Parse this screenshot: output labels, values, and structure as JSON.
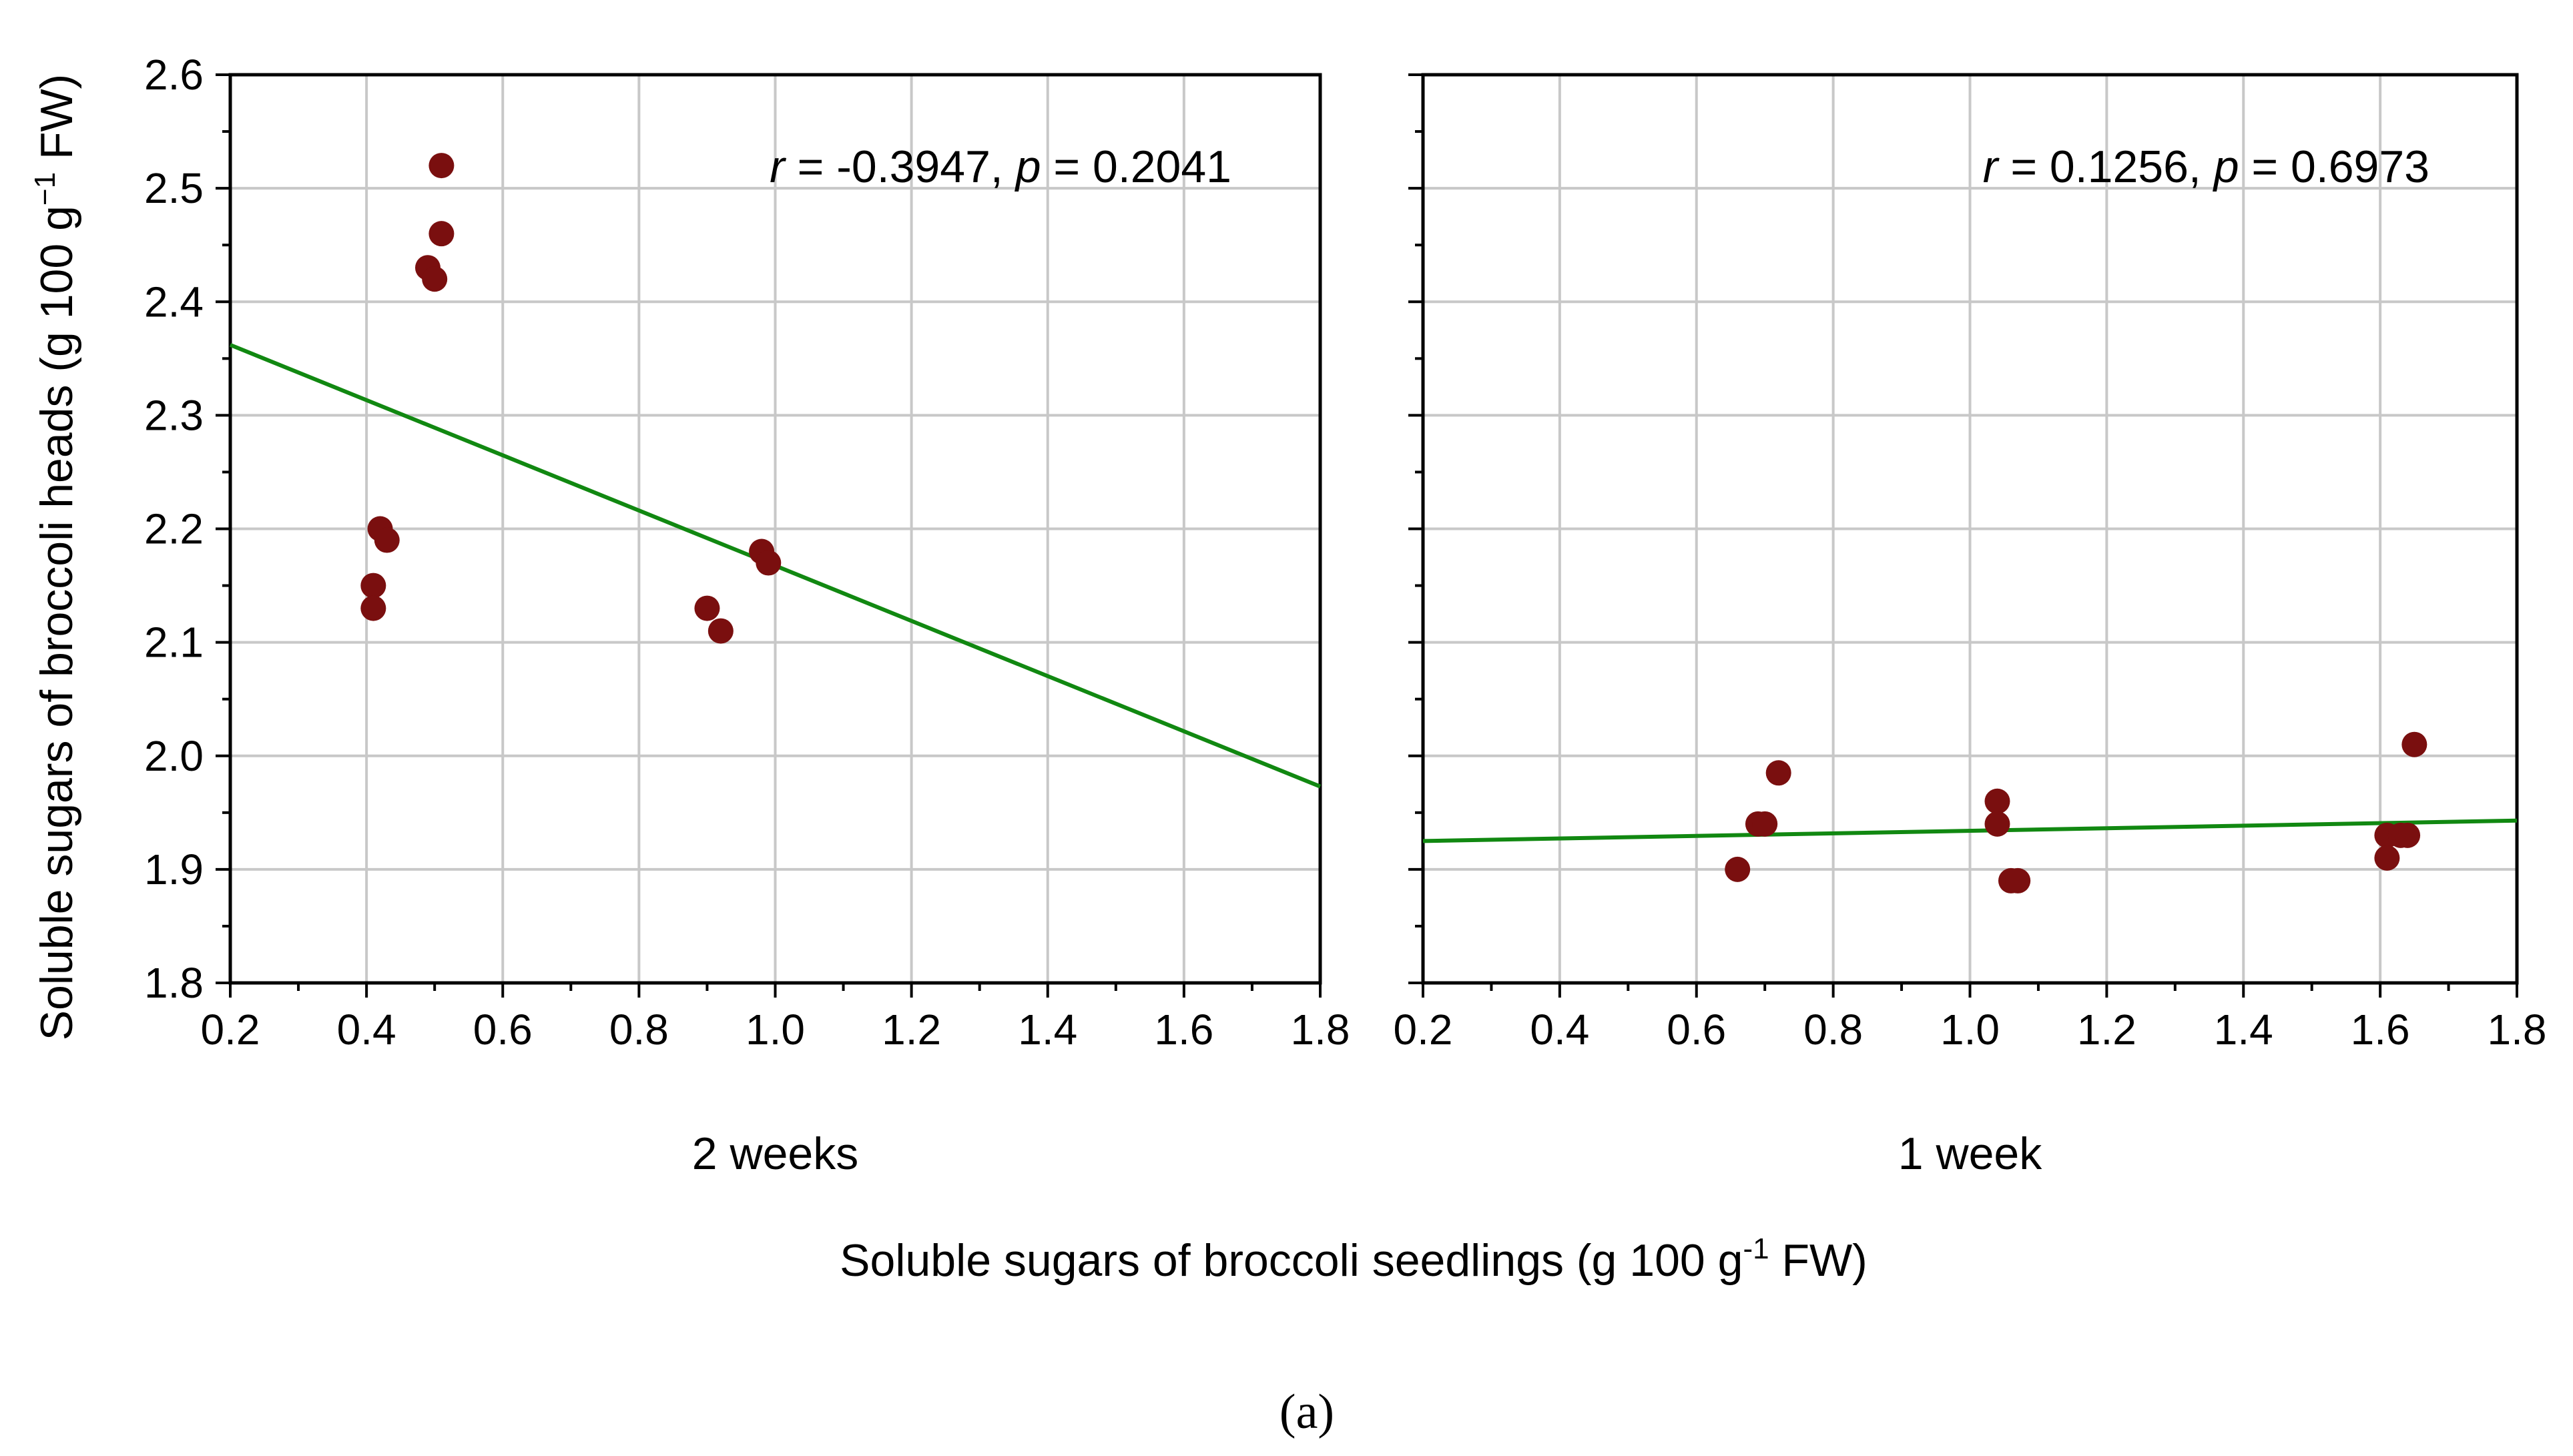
{
  "chart_data": [
    {
      "type": "scatter",
      "panel_label": "2 weeks",
      "annotation": {
        "r_symbol": "r",
        "r_value": " = -0.3947, ",
        "p_symbol": "p",
        "p_value": " = 0.2041"
      },
      "x": [
        0.41,
        0.41,
        0.42,
        0.43,
        0.49,
        0.5,
        0.51,
        0.51,
        0.9,
        0.92,
        0.98,
        0.99
      ],
      "y": [
        2.15,
        2.13,
        2.2,
        2.19,
        2.43,
        2.42,
        2.46,
        2.52,
        2.13,
        2.11,
        2.18,
        2.17
      ],
      "fit_line": {
        "x": [
          0.2,
          1.8
        ],
        "y": [
          2.362,
          1.973
        ]
      },
      "xlim": [
        0.2,
        1.8
      ],
      "ylim": [
        1.8,
        2.6
      ],
      "xticks": [
        "0.2",
        "0.4",
        "0.6",
        "0.8",
        "1.0",
        "1.2",
        "1.4",
        "1.6",
        "1.8"
      ],
      "yticks": [
        "1.8",
        "1.9",
        "2.0",
        "2.1",
        "2.2",
        "2.3",
        "2.4",
        "2.5",
        "2.6"
      ],
      "grid": true,
      "point_color": "#7a0f0f",
      "line_color": "#118811"
    },
    {
      "type": "scatter",
      "panel_label": "1 week",
      "annotation": {
        "r_symbol": "r",
        "r_value": " = 0.1256, ",
        "p_symbol": "p",
        "p_value": " = 0.6973"
      },
      "x": [
        0.66,
        0.69,
        0.7,
        0.72,
        1.04,
        1.04,
        1.06,
        1.07,
        1.61,
        1.61,
        1.63,
        1.64,
        1.65
      ],
      "y": [
        1.9,
        1.94,
        1.94,
        1.985,
        1.96,
        1.94,
        1.89,
        1.89,
        1.93,
        1.91,
        1.93,
        1.93,
        2.01
      ],
      "fit_line": {
        "x": [
          0.2,
          1.8
        ],
        "y": [
          1.925,
          1.943
        ]
      },
      "xlim": [
        0.2,
        1.8
      ],
      "ylim": [
        1.8,
        2.6
      ],
      "xticks": [
        "0.2",
        "0.4",
        "0.6",
        "0.8",
        "1.0",
        "1.2",
        "1.4",
        "1.6",
        "1.8"
      ],
      "yticks": [
        "1.8",
        "1.9",
        "2.0",
        "2.1",
        "2.2",
        "2.3",
        "2.4",
        "2.5",
        "2.6"
      ],
      "grid": true,
      "point_color": "#7a0f0f",
      "line_color": "#118811"
    }
  ],
  "ylabel": {
    "main": "Soluble sugars of broccoli heads (g 100 g",
    "sup": "−1",
    "tail": " FW)"
  },
  "xlabel": {
    "main": "Soluble sugars of broccoli seedlings (g 100 g",
    "sup": "-1",
    "tail": " FW)"
  },
  "figure_label": "(a)"
}
